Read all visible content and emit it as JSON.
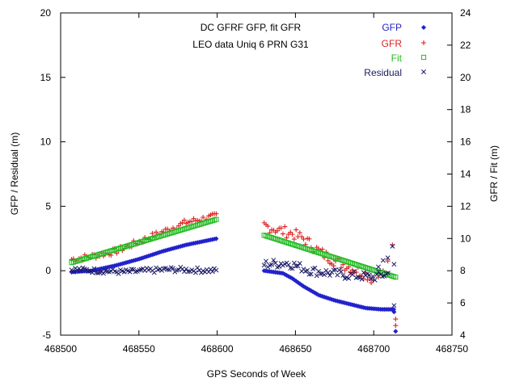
{
  "chart_data": {
    "type": "scatter",
    "title": "DC GFRF GFP, fit GFR",
    "subtitle": "LEO data Uniq 6 PRN G31",
    "xlabel": "GPS Seconds of Week",
    "ylabel": "GFP / Residual (m)",
    "y2label": "GFR / Fit (m)",
    "xlim": [
      468500,
      468750
    ],
    "ylim": [
      -5,
      20
    ],
    "y2lim": [
      4,
      24
    ],
    "xticks": [
      "468500",
      "468550",
      "468600",
      "468650",
      "468700",
      "468750"
    ],
    "yticks": [
      "-5",
      "0",
      "5",
      "10",
      "15",
      "20"
    ],
    "y2ticks": [
      "4",
      "6",
      "8",
      "10",
      "12",
      "14",
      "16",
      "18",
      "20",
      "22",
      "24"
    ],
    "legend_position": "top-right",
    "series": [
      {
        "name": "GFP",
        "axis": "left",
        "marker": "diamond",
        "color": "#2222cc",
        "segments": [
          {
            "x": [
              468507,
              468520,
              468535,
              468550,
              468565,
              468580,
              468600
            ],
            "y": [
              -0.1,
              0.0,
              0.4,
              0.9,
              1.5,
              2.0,
              2.5
            ]
          },
          {
            "x": [
              468630,
              468642,
              468648,
              468655,
              468665,
              468675,
              468685,
              468695,
              468705,
              468713
            ],
            "y": [
              0.0,
              -0.2,
              -0.6,
              -1.2,
              -1.9,
              -2.3,
              -2.6,
              -2.9,
              -3.0,
              -3.0
            ]
          }
        ],
        "extra_points": [
          [
            468713,
            -3.2
          ],
          [
            468714,
            -4.7
          ]
        ]
      },
      {
        "name": "GFR",
        "axis": "right",
        "marker": "plus",
        "color": "#dd2222",
        "segments": [
          {
            "x": [
              468507,
              468520,
              468535,
              468550,
              468565,
              468580,
              468600
            ],
            "y": [
              8.7,
              8.9,
              9.2,
              9.8,
              10.4,
              11.0,
              11.4
            ],
            "noise": 0.2
          },
          {
            "x": [
              468630,
              468640,
              468648,
              468655,
              468665,
              468675,
              468685,
              468695,
              468700
            ],
            "y": [
              10.8,
              10.5,
              10.3,
              10.0,
              9.2,
              8.6,
              8.2,
              7.8,
              7.4
            ],
            "noise": 0.35
          }
        ],
        "extra_points": [
          [
            468703,
            7.6
          ],
          [
            468706,
            8.0
          ],
          [
            468709,
            8.6
          ],
          [
            468712,
            9.6
          ],
          [
            468714,
            5.0
          ],
          [
            468714,
            4.6
          ]
        ]
      },
      {
        "name": "Fit",
        "axis": "right",
        "marker": "square",
        "color": "#22bb22",
        "segments": [
          {
            "x": [
              468507,
              468600
            ],
            "y": [
              8.5,
              11.2
            ]
          },
          {
            "x": [
              468630,
              468714
            ],
            "y": [
              10.2,
              7.6
            ]
          }
        ]
      },
      {
        "name": "Residual",
        "axis": "left",
        "marker": "cross",
        "color": "#1a1a66",
        "segments": [
          {
            "x": [
              468507,
              468540,
              468570,
              468600
            ],
            "y": [
              0.1,
              -0.1,
              0.1,
              0.0
            ],
            "noise": 0.2
          },
          {
            "x": [
              468630,
              468645,
              468660,
              468680,
              468700,
              468710
            ],
            "y": [
              0.5,
              0.6,
              0.0,
              -0.3,
              -0.5,
              -0.2
            ],
            "noise": 0.35
          }
        ],
        "extra_points": [
          [
            468703,
            0.3
          ],
          [
            468706,
            0.8
          ],
          [
            468709,
            1.0
          ],
          [
            468712,
            1.9
          ],
          [
            468713,
            0.5
          ],
          [
            468713,
            -2.7
          ]
        ]
      }
    ]
  }
}
